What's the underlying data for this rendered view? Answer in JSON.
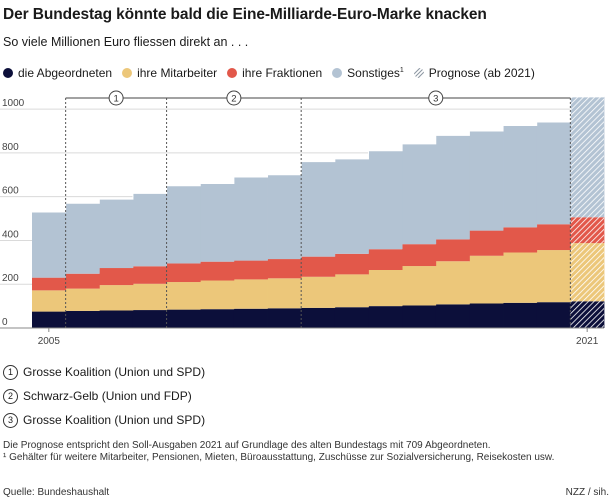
{
  "header": {
    "title": "Der Bundestag könnte bald die Eine-Milliarde-Euro-Marke knacken",
    "subtitle": "So viele Millionen Euro fliessen direkt an . . ."
  },
  "legend": [
    {
      "label": "die Abgeordneten",
      "color": "#0c0f3a"
    },
    {
      "label": "ihre Mitarbeiter",
      "color": "#ecc77a"
    },
    {
      "label": "ihre Fraktionen",
      "color": "#e2584a"
    },
    {
      "label": "Sonstiges",
      "sup": "1",
      "color": "#b3c3d3"
    },
    {
      "label": "Prognose (ab 2021)",
      "hatch": true
    }
  ],
  "chart_data": {
    "type": "area",
    "stacked": true,
    "step": true,
    "x": [
      2005,
      2006,
      2007,
      2008,
      2009,
      2010,
      2011,
      2012,
      2013,
      2014,
      2015,
      2016,
      2017,
      2018,
      2019,
      2020,
      2021
    ],
    "x_tick_labels": [
      "2005",
      "2021"
    ],
    "y_ticks": [
      0,
      200,
      400,
      600,
      800,
      1000
    ],
    "ylim": [
      0,
      1060
    ],
    "grid": true,
    "series": [
      {
        "name": "die Abgeordneten",
        "color": "#0c0f3a",
        "values": [
          75,
          78,
          80,
          82,
          84,
          86,
          88,
          90,
          92,
          95,
          100,
          103,
          108,
          112,
          115,
          118,
          122
        ]
      },
      {
        "name": "ihre Mitarbeiter",
        "color": "#ecc77a",
        "values": [
          97,
          102,
          116,
          120,
          126,
          131,
          134,
          137,
          142,
          150,
          165,
          180,
          197,
          218,
          230,
          238,
          266
        ]
      },
      {
        "name": "ihre Fraktionen",
        "color": "#e2584a",
        "values": [
          58,
          68,
          78,
          80,
          85,
          86,
          86,
          88,
          92,
          94,
          95,
          100,
          100,
          115,
          115,
          118,
          118
        ]
      },
      {
        "name": "Sonstiges",
        "color": "#b3c3d3",
        "values": [
          300,
          322,
          315,
          333,
          355,
          357,
          382,
          385,
          434,
          434,
          450,
          458,
          475,
          455,
          465,
          467,
          550
        ]
      }
    ],
    "forecast_from": 2021,
    "periods": [
      {
        "label": "1",
        "from": 2006,
        "to": 2009
      },
      {
        "label": "2",
        "from": 2009,
        "to": 2013
      },
      {
        "label": "3",
        "from": 2013,
        "to": 2021
      }
    ]
  },
  "notes": [
    {
      "num": "1",
      "text": "Grosse Koalition (Union und SPD)"
    },
    {
      "num": "2",
      "text": "Schwarz-Gelb (Union und FDP)"
    },
    {
      "num": "3",
      "text": "Grosse Koalition (Union und SPD)"
    }
  ],
  "footer": {
    "forecast_note": "Die Prognose entspricht den Soll-Ausgaben 2021 auf Grundlage des alten Bundestags mit 709 Abgeordneten.",
    "footnote": "¹ Gehälter für weitere Mitarbeiter, Pensionen, Mieten, Büroausstattung, Zuschüsse zur Sozialversicherung, Reisekosten usw.",
    "source": "Quelle: Bundeshaushalt",
    "credit": "NZZ / sih."
  }
}
